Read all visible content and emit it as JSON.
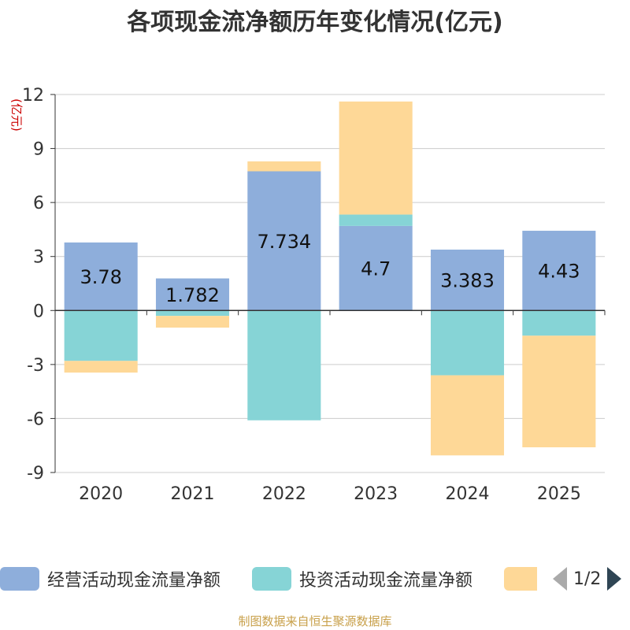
{
  "chart_data": {
    "type": "bar",
    "stacked": true,
    "title": "各项现金流净额历年变化情况(亿元)",
    "ylabel": "(亿元)",
    "categories": [
      "2020",
      "2021",
      "2022",
      "2023",
      "2024",
      "2025"
    ],
    "ylim": [
      -9,
      12
    ],
    "yticks": [
      12,
      9,
      6,
      3,
      0,
      -3,
      -6,
      -9
    ],
    "grid": true,
    "series": [
      {
        "name": "经营活动现金流量净额",
        "color": "#8eaedb",
        "values": [
          3.78,
          1.782,
          7.734,
          4.7,
          3.383,
          4.43
        ],
        "labels": [
          "3.78",
          "1.782",
          "7.734",
          "4.7",
          "3.383",
          "4.43"
        ]
      },
      {
        "name": "投资活动现金流量净额",
        "color": "#86d4d6",
        "values": [
          -2.8,
          -0.3,
          -6.1,
          0.63,
          -3.6,
          -1.4
        ]
      },
      {
        "name": "",
        "color": "#fed897",
        "values": [
          -0.65,
          -0.65,
          0.55,
          6.28,
          -4.45,
          -6.2
        ]
      }
    ]
  },
  "legend": {
    "page": "1/2"
  },
  "footer": "制图数据来自恒生聚源数据库"
}
